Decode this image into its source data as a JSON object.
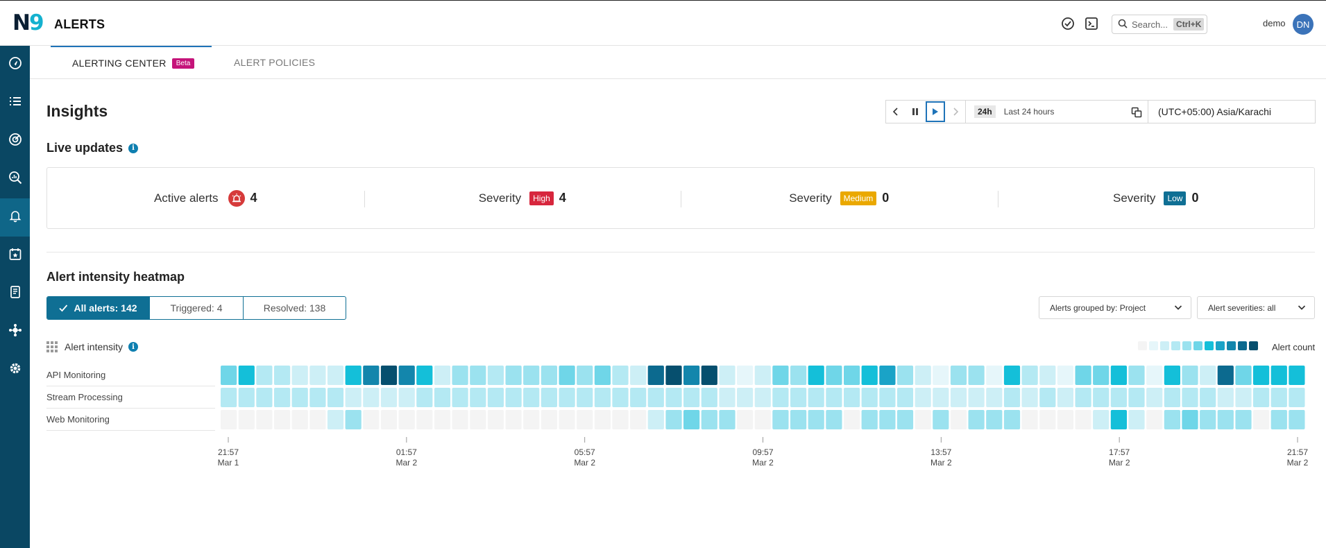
{
  "header": {
    "logo_n": "N",
    "logo_nine": "9",
    "title": "ALERTS",
    "search_placeholder": "Search...",
    "search_shortcut": "Ctrl+K",
    "user_name": "demo",
    "avatar_initials": "DN",
    "icons": [
      "check-circle-icon",
      "terminal-icon",
      "search-icon"
    ]
  },
  "sidebar": {
    "items": [
      {
        "icon": "compass-icon"
      },
      {
        "icon": "list-icon"
      },
      {
        "icon": "target-icon"
      },
      {
        "icon": "zoom-chart-icon"
      },
      {
        "icon": "bell-icon",
        "active": true
      },
      {
        "icon": "calendar-star-icon"
      },
      {
        "icon": "report-icon"
      },
      {
        "icon": "integrations-icon"
      },
      {
        "icon": "gear-icon"
      }
    ]
  },
  "tabs": [
    {
      "label": "ALERTING CENTER",
      "badge": "Beta",
      "active": true
    },
    {
      "label": "ALERT POLICIES",
      "active": false
    }
  ],
  "page": {
    "title": "Insights"
  },
  "time_controls": {
    "range_short": "24h",
    "range_label": "Last 24 hours",
    "timezone": "(UTC+05:00) Asia/Karachi"
  },
  "live_updates": {
    "title": "Live updates",
    "active_alerts": {
      "label": "Active alerts",
      "count": "4"
    },
    "severities": [
      {
        "label": "Severity",
        "level": "High",
        "count": "4",
        "color": "#d7263d"
      },
      {
        "label": "Severity",
        "level": "Medium",
        "count": "0",
        "color": "#eaa800"
      },
      {
        "label": "Severity",
        "level": "Low",
        "count": "0",
        "color": "#0f6f94"
      }
    ]
  },
  "heatmap_section": {
    "title": "Alert intensity heatmap",
    "filters": [
      {
        "label": "All alerts: 142",
        "active": true
      },
      {
        "label": "Triggered: 4",
        "active": false
      },
      {
        "label": "Resolved: 138",
        "active": false
      }
    ],
    "group_by": "Alerts grouped by: Project",
    "severities": "Alert severities: all",
    "intensity_label": "Alert intensity",
    "legend_label": "Alert count"
  },
  "chart_data": {
    "type": "heatmap",
    "rows": [
      "API Monitoring",
      "Stream Processing",
      "Web Monitoring"
    ],
    "x_ticks": [
      {
        "time": "21:57",
        "date": "Mar 1"
      },
      {
        "time": "01:57",
        "date": "Mar 2"
      },
      {
        "time": "05:57",
        "date": "Mar 2"
      },
      {
        "time": "09:57",
        "date": "Mar 2"
      },
      {
        "time": "13:57",
        "date": "Mar 2"
      },
      {
        "time": "17:57",
        "date": "Mar 2"
      },
      {
        "time": "21:57",
        "date": "Mar 2"
      }
    ],
    "color_scale": [
      "#f4f4f4",
      "#e6f6fa",
      "#cdeff6",
      "#b4e9f3",
      "#9be2ef",
      "#6fd6e8",
      "#14bfd9",
      "#1aa3c7",
      "#1386ac",
      "#0c6a8f",
      "#064f6e"
    ],
    "intensity_levels": [
      [
        5,
        6,
        3,
        3,
        2,
        2,
        2,
        6,
        8,
        10,
        8,
        6,
        2,
        4,
        4,
        3,
        4,
        4,
        4,
        5,
        4,
        5,
        3,
        2,
        9,
        10,
        8,
        10,
        2,
        1,
        2,
        5,
        4,
        6,
        5,
        5,
        6,
        7,
        4,
        2,
        1,
        4,
        4,
        1,
        6,
        3,
        2,
        1,
        5,
        5,
        6,
        4,
        1,
        6,
        4,
        2,
        9,
        5,
        6,
        6,
        6
      ],
      [
        3,
        3,
        3,
        3,
        3,
        3,
        3,
        2,
        2,
        2,
        2,
        3,
        3,
        3,
        3,
        3,
        3,
        3,
        3,
        3,
        3,
        3,
        3,
        3,
        3,
        3,
        3,
        3,
        2,
        2,
        2,
        3,
        3,
        3,
        3,
        3,
        3,
        3,
        3,
        2,
        2,
        2,
        2,
        2,
        3,
        2,
        3,
        2,
        3,
        3,
        3,
        3,
        2,
        3,
        3,
        3,
        2,
        2,
        3,
        3,
        3
      ],
      [
        0,
        0,
        0,
        0,
        0,
        0,
        2,
        4,
        0,
        0,
        0,
        0,
        0,
        0,
        0,
        0,
        0,
        0,
        0,
        0,
        0,
        0,
        0,
        0,
        2,
        4,
        5,
        4,
        4,
        0,
        0,
        4,
        4,
        4,
        4,
        0,
        4,
        4,
        4,
        0,
        4,
        0,
        4,
        4,
        4,
        0,
        0,
        0,
        0,
        2,
        6,
        2,
        0,
        4,
        5,
        4,
        4,
        4,
        0,
        4,
        4
      ]
    ]
  }
}
